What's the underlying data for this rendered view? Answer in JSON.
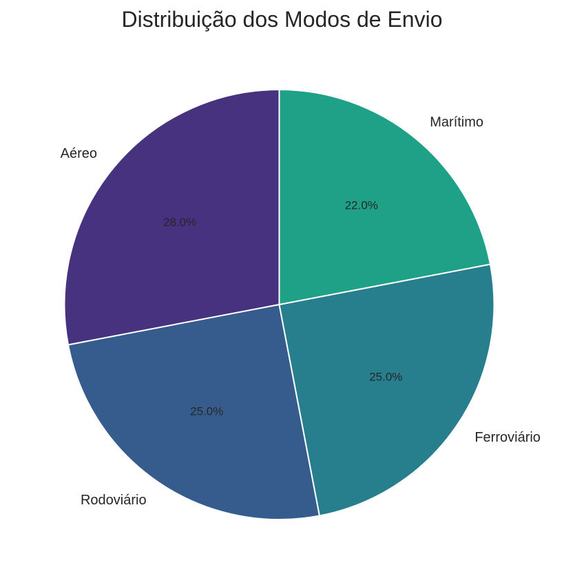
{
  "chart_data": {
    "type": "pie",
    "title": "Distribuição dos Modos de Envio",
    "start_angle_deg": 90,
    "direction": "counterclockwise",
    "slices": [
      {
        "label": "Aéreo",
        "value": 28.0,
        "pct_label": "28.0%",
        "color": "#46327e"
      },
      {
        "label": "Rodoviário",
        "value": 25.0,
        "pct_label": "25.0%",
        "color": "#365c8d"
      },
      {
        "label": "Ferroviário",
        "value": 25.0,
        "pct_label": "25.0%",
        "color": "#277f8e"
      },
      {
        "label": "Marítimo",
        "value": 22.0,
        "pct_label": "22.0%",
        "color": "#1fa187"
      }
    ]
  }
}
